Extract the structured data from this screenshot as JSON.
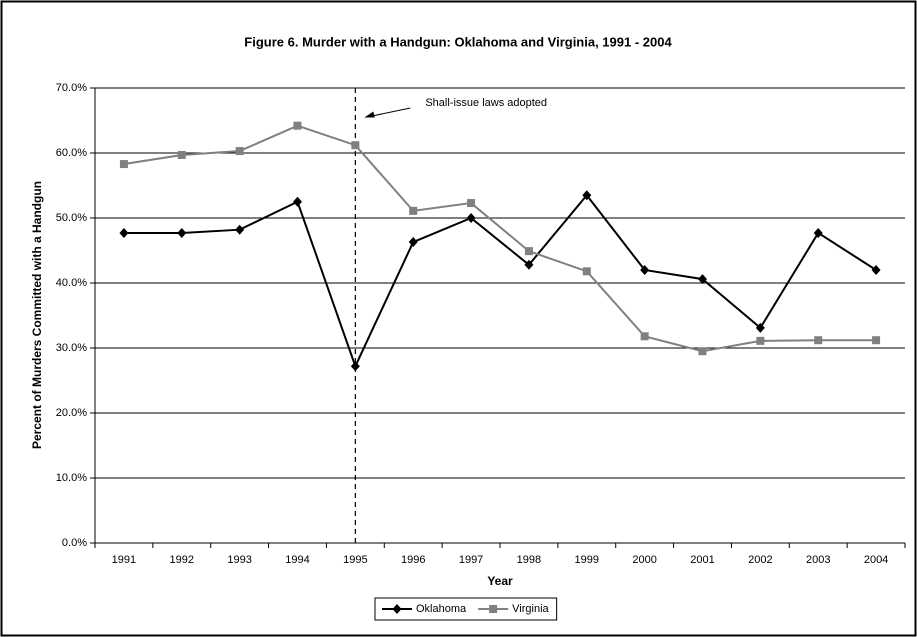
{
  "chart_data": {
    "type": "line",
    "title": "Figure 6. Murder with a Handgun: Oklahoma and Virginia, 1991 - 2004",
    "x_label": "Year",
    "y_label": "Percent of Murders Committed with a Handgun",
    "categories": [
      "1991",
      "1992",
      "1993",
      "1994",
      "1995",
      "1996",
      "1997",
      "1998",
      "1999",
      "2000",
      "2001",
      "2002",
      "2003",
      "2004"
    ],
    "series": [
      {
        "name": "Oklahoma",
        "color": "#000000",
        "marker": "diamond",
        "values": [
          47.7,
          47.7,
          48.2,
          52.5,
          27.2,
          46.3,
          50.0,
          42.8,
          53.5,
          42.0,
          40.6,
          33.1,
          47.7,
          42.0
        ]
      },
      {
        "name": "Virginia",
        "color": "#808080",
        "marker": "square",
        "values": [
          58.3,
          59.7,
          60.3,
          64.2,
          61.2,
          51.1,
          52.3,
          44.9,
          41.8,
          31.8,
          29.5,
          31.1,
          31.2,
          31.2
        ]
      }
    ],
    "ylim": [
      0,
      70
    ],
    "yticks": [
      {
        "value": 0,
        "label": "0.0%"
      },
      {
        "value": 10,
        "label": "10.0%"
      },
      {
        "value": 20,
        "label": "20.0%"
      },
      {
        "value": 30,
        "label": "30.0%"
      },
      {
        "value": 40,
        "label": "40.0%"
      },
      {
        "value": 50,
        "label": "50.0%"
      },
      {
        "value": 60,
        "label": "60.0%"
      },
      {
        "value": 70,
        "label": "70.0%"
      }
    ],
    "grid": true,
    "legend": "bottom",
    "annotations": [
      {
        "text": "Shall-issue laws adopted",
        "x": "1995"
      }
    ]
  }
}
